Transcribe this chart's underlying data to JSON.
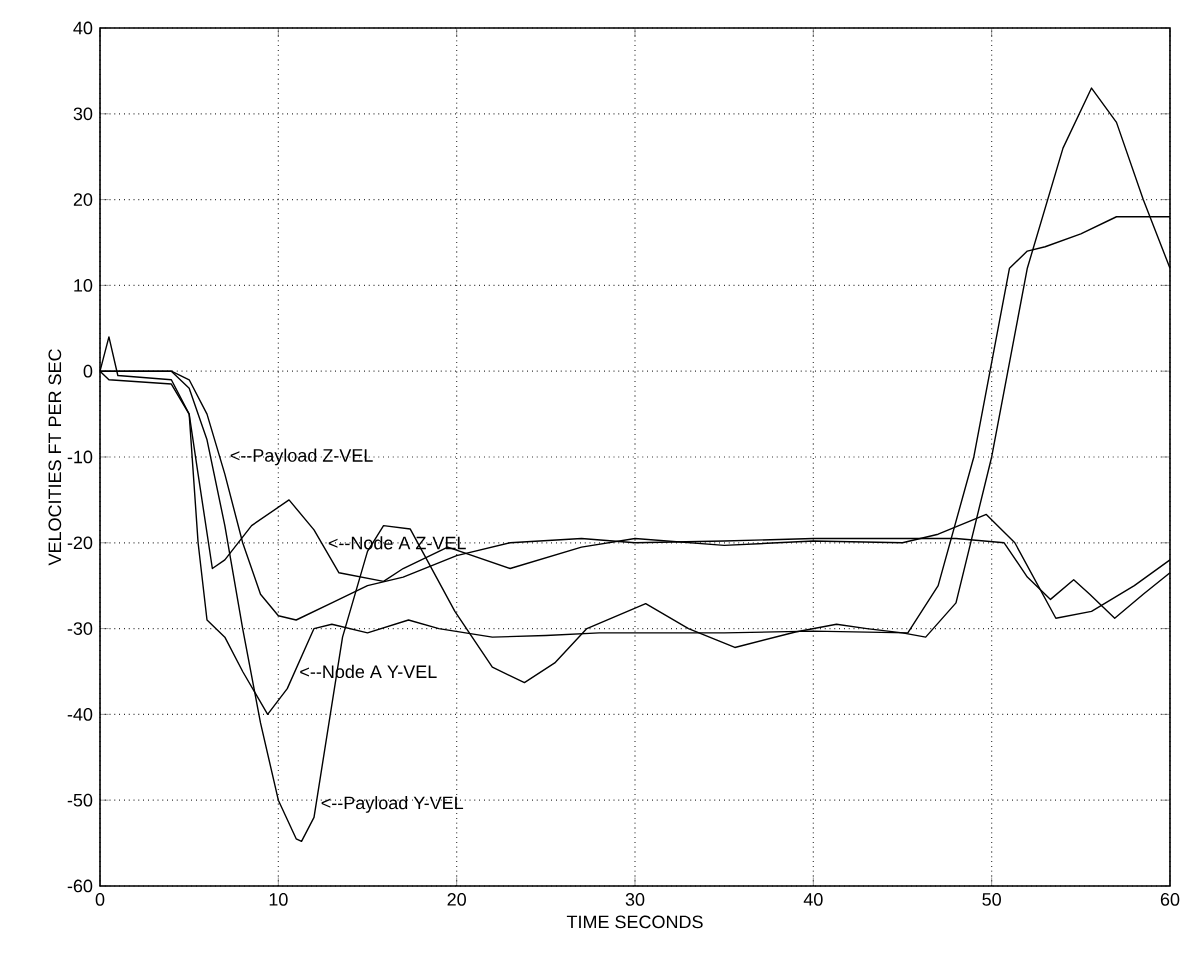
{
  "chart_data": {
    "type": "line",
    "xlabel": "TIME SECONDS",
    "ylabel": "VELOCITIES FT PER SEC",
    "xlim": [
      0,
      60
    ],
    "ylim": [
      -60,
      40
    ],
    "xticks": [
      0,
      10,
      20,
      30,
      40,
      50,
      60
    ],
    "yticks": [
      -60,
      -50,
      -40,
      -30,
      -20,
      -10,
      0,
      10,
      20,
      30,
      40
    ],
    "grid": true,
    "marker": "none",
    "line_style": "solid",
    "series": [
      {
        "color": "#000000",
        "x": [
          0,
          4,
          5,
          6,
          7,
          8,
          9,
          10,
          11,
          11.3,
          12,
          13.6,
          15,
          15.9,
          17.4,
          19.9,
          22,
          23.8,
          25.5,
          27.3,
          30.6,
          33,
          35.6,
          39,
          41.3,
          43,
          45,
          46.3,
          48,
          50,
          52,
          54,
          55.6,
          57,
          58.5,
          60
        ],
        "values": [
          0,
          0,
          -2,
          -8,
          -18,
          -30,
          -41,
          -50,
          -54.5,
          -54.8,
          -52,
          -31,
          -21,
          -18,
          -18.4,
          -28,
          -34.5,
          -36.3,
          -34,
          -30,
          -27.1,
          -30,
          -32.2,
          -30.4,
          -29.5,
          -30,
          -30.5,
          -31,
          -27,
          -10,
          12,
          26,
          33,
          29,
          20,
          12
        ]
      },
      {
        "color": "#000000",
        "x": [
          0,
          0.5,
          4,
          5,
          5.5,
          6,
          7,
          8,
          9.4,
          10.5,
          12,
          13,
          15,
          17.3,
          19,
          22,
          25,
          28,
          30,
          35,
          40,
          45.3,
          47,
          49,
          51,
          52,
          53,
          55,
          57,
          60
        ],
        "values": [
          0,
          -1,
          -1.5,
          -5,
          -20,
          -29,
          -31,
          -35,
          -40,
          -37,
          -30,
          -29.5,
          -30.5,
          -29,
          -30,
          -31,
          -30.8,
          -30.5,
          -30.5,
          -30.5,
          -30.3,
          -30.5,
          -25,
          -10,
          12,
          14,
          14.5,
          16,
          18,
          18
        ]
      },
      {
        "color": "#000000",
        "x": [
          0,
          4,
          5,
          6,
          7,
          8,
          9,
          10,
          11,
          13,
          15,
          17,
          20,
          23,
          27,
          30,
          35,
          40,
          45,
          48,
          50.7,
          52,
          53.3,
          54.6,
          55.5,
          56.9,
          58.5,
          60
        ],
        "values": [
          0,
          0,
          -1,
          -5,
          -12,
          -20,
          -26,
          -28.5,
          -29,
          -27,
          -25,
          -24,
          -21.5,
          -20,
          -19.5,
          -20,
          -19.8,
          -19.5,
          -19.5,
          -19.5,
          -20,
          -24,
          -26.6,
          -24.3,
          -26,
          -28.8,
          -26,
          -23.5
        ]
      },
      {
        "color": "#000000",
        "x": [
          0,
          0.5,
          1,
          4,
          5,
          5.5,
          6.3,
          7,
          8.5,
          10.6,
          12,
          13.4,
          15.9,
          17,
          19.5,
          23,
          27,
          30,
          35,
          40,
          45,
          47,
          49.7,
          51.3,
          53.6,
          55.6,
          58,
          60
        ],
        "values": [
          0,
          4,
          -0.5,
          -1,
          -5,
          -12,
          -23,
          -22,
          -18,
          -15,
          -18.5,
          -23.5,
          -24.5,
          -23,
          -20.5,
          -23,
          -20.5,
          -19.5,
          -20.3,
          -19.8,
          -20,
          -19,
          -16.7,
          -20,
          -28.8,
          -28,
          -25,
          -22
        ]
      }
    ],
    "annotations": [
      {
        "text": "<--Payload Z-VEL",
        "x": 7.2,
        "y": -10
      },
      {
        "text": "<--Node A Z-VEL",
        "x": 12.7,
        "y": -20
      },
      {
        "text": "<--Node A Y-VEL",
        "x": 11.1,
        "y": -35
      },
      {
        "text": "<--Payload Y-VEL",
        "x": 12.3,
        "y": -50.5
      }
    ]
  }
}
